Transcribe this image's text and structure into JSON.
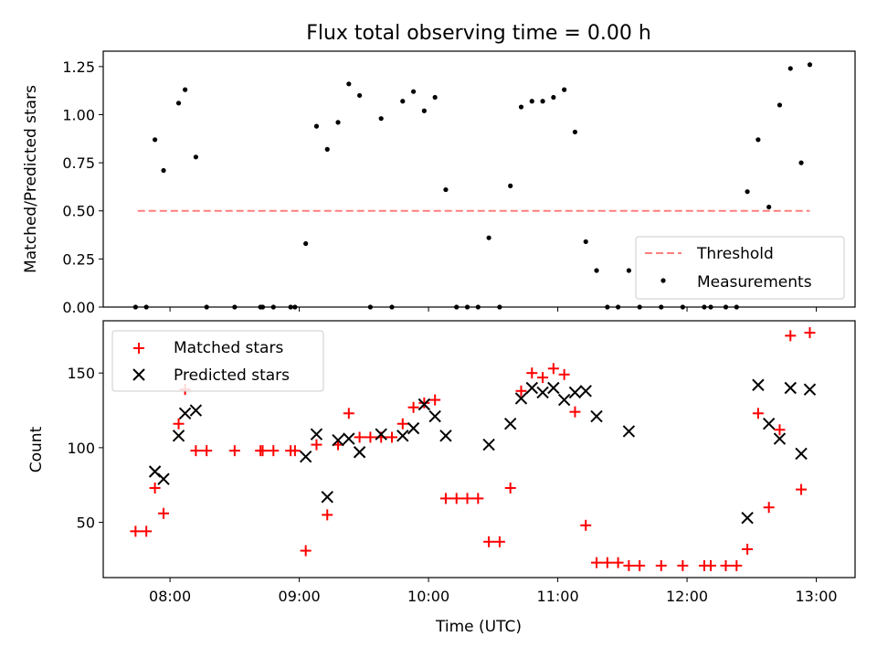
{
  "chart_data": [
    {
      "type": "scatter",
      "title": "Flux total observing time = 0.00 h",
      "xlabel": "",
      "ylabel": "Matched/Predicted stars",
      "xlim": [
        "07:29",
        "13:18"
      ],
      "ylim": [
        0,
        1.33
      ],
      "yticks": [
        0.0,
        0.25,
        0.5,
        0.75,
        1.0,
        1.25
      ],
      "ytick_labels": [
        "0.00",
        "0.25",
        "0.50",
        "0.75",
        "1.00",
        "1.25"
      ],
      "grid": false,
      "legend": {
        "location": "lower-right",
        "entries": [
          "Threshold",
          "Measurements"
        ]
      },
      "threshold": {
        "name": "Threshold",
        "y": 0.5,
        "x_start": "07:45",
        "x_end": "12:57",
        "style": "dashed",
        "color": "#ff7f7f"
      },
      "measurements": {
        "name": "Measurements",
        "color": "#000000",
        "points": [
          [
            "07:44",
            0.0
          ],
          [
            "07:49",
            0.0
          ],
          [
            "07:53",
            0.87
          ],
          [
            "07:57",
            0.71
          ],
          [
            "08:04",
            1.06
          ],
          [
            "08:07",
            1.13
          ],
          [
            "08:12",
            0.78
          ],
          [
            "08:17",
            0.0
          ],
          [
            "08:30",
            0.0
          ],
          [
            "08:42",
            0.0
          ],
          [
            "08:43",
            0.0
          ],
          [
            "08:48",
            0.0
          ],
          [
            "08:56",
            0.0
          ],
          [
            "08:58",
            0.0
          ],
          [
            "09:03",
            0.33
          ],
          [
            "09:08",
            0.94
          ],
          [
            "09:13",
            0.82
          ],
          [
            "09:18",
            0.96
          ],
          [
            "09:23",
            1.16
          ],
          [
            "09:28",
            1.1
          ],
          [
            "09:33",
            0.0
          ],
          [
            "09:38",
            0.98
          ],
          [
            "09:43",
            0.0
          ],
          [
            "09:48",
            1.07
          ],
          [
            "09:53",
            1.12
          ],
          [
            "09:58",
            1.02
          ],
          [
            "10:03",
            1.09
          ],
          [
            "10:08",
            0.61
          ],
          [
            "10:13",
            0.0
          ],
          [
            "10:18",
            0.0
          ],
          [
            "10:23",
            0.0
          ],
          [
            "10:28",
            0.36
          ],
          [
            "10:33",
            0.0
          ],
          [
            "10:38",
            0.63
          ],
          [
            "10:43",
            1.04
          ],
          [
            "10:48",
            1.07
          ],
          [
            "10:53",
            1.07
          ],
          [
            "10:58",
            1.09
          ],
          [
            "11:03",
            1.13
          ],
          [
            "11:08",
            0.91
          ],
          [
            "11:13",
            0.34
          ],
          [
            "11:18",
            0.19
          ],
          [
            "11:23",
            0.0
          ],
          [
            "11:28",
            0.0
          ],
          [
            "11:33",
            0.19
          ],
          [
            "11:38",
            0.0
          ],
          [
            "11:48",
            0.0
          ],
          [
            "11:58",
            0.0
          ],
          [
            "12:08",
            0.0
          ],
          [
            "12:11",
            0.0
          ],
          [
            "12:18",
            0.0
          ],
          [
            "12:23",
            0.0
          ],
          [
            "12:28",
            0.6
          ],
          [
            "12:33",
            0.87
          ],
          [
            "12:38",
            0.52
          ],
          [
            "12:43",
            1.05
          ],
          [
            "12:48",
            1.24
          ],
          [
            "12:53",
            0.75
          ],
          [
            "12:57",
            1.26
          ]
        ]
      }
    },
    {
      "type": "scatter",
      "title": "",
      "xlabel": "Time (UTC)",
      "ylabel": "Count",
      "xlim": [
        "07:29",
        "13:18"
      ],
      "ylim": [
        13,
        185
      ],
      "xticks": [
        "08:00",
        "09:00",
        "10:00",
        "11:00",
        "12:00",
        "13:00"
      ],
      "yticks": [
        50,
        100,
        150
      ],
      "grid": false,
      "legend": {
        "location": "top-left",
        "entries": [
          "Matched stars",
          "Predicted stars"
        ]
      },
      "series": [
        {
          "name": "Matched stars",
          "marker": "plus",
          "color": "#ff0000",
          "points": [
            [
              "07:44",
              44
            ],
            [
              "07:49",
              44
            ],
            [
              "07:53",
              73
            ],
            [
              "07:57",
              56
            ],
            [
              "08:04",
              116
            ],
            [
              "08:07",
              139
            ],
            [
              "08:12",
              98
            ],
            [
              "08:17",
              98
            ],
            [
              "08:30",
              98
            ],
            [
              "08:42",
              98
            ],
            [
              "08:43",
              98
            ],
            [
              "08:48",
              98
            ],
            [
              "08:56",
              98
            ],
            [
              "08:58",
              98
            ],
            [
              "09:03",
              31
            ],
            [
              "09:08",
              102
            ],
            [
              "09:13",
              55
            ],
            [
              "09:18",
              102
            ],
            [
              "09:23",
              123
            ],
            [
              "09:28",
              107
            ],
            [
              "09:33",
              107
            ],
            [
              "09:38",
              107
            ],
            [
              "09:43",
              107
            ],
            [
              "09:48",
              116
            ],
            [
              "09:53",
              127
            ],
            [
              "09:58",
              130
            ],
            [
              "10:03",
              132
            ],
            [
              "10:08",
              66
            ],
            [
              "10:13",
              66
            ],
            [
              "10:18",
              66
            ],
            [
              "10:23",
              66
            ],
            [
              "10:28",
              37
            ],
            [
              "10:33",
              37
            ],
            [
              "10:38",
              73
            ],
            [
              "10:43",
              138
            ],
            [
              "10:48",
              150
            ],
            [
              "10:53",
              147
            ],
            [
              "10:58",
              153
            ],
            [
              "11:03",
              149
            ],
            [
              "11:08",
              124
            ],
            [
              "11:13",
              48
            ],
            [
              "11:18",
              23
            ],
            [
              "11:23",
              23
            ],
            [
              "11:28",
              23
            ],
            [
              "11:33",
              21
            ],
            [
              "11:38",
              21
            ],
            [
              "11:48",
              21
            ],
            [
              "11:58",
              21
            ],
            [
              "12:08",
              21
            ],
            [
              "12:11",
              21
            ],
            [
              "12:18",
              21
            ],
            [
              "12:23",
              21
            ],
            [
              "12:28",
              32
            ],
            [
              "12:33",
              123
            ],
            [
              "12:38",
              60
            ],
            [
              "12:43",
              112
            ],
            [
              "12:48",
              175
            ],
            [
              "12:53",
              72
            ],
            [
              "12:57",
              177
            ]
          ]
        },
        {
          "name": "Predicted stars",
          "marker": "x",
          "color": "#000000",
          "points": [
            [
              "07:53",
              84
            ],
            [
              "07:57",
              79
            ],
            [
              "08:04",
              108
            ],
            [
              "08:07",
              123
            ],
            [
              "08:12",
              125
            ],
            [
              "09:03",
              94
            ],
            [
              "09:08",
              109
            ],
            [
              "09:13",
              67
            ],
            [
              "09:18",
              105
            ],
            [
              "09:23",
              106
            ],
            [
              "09:28",
              97
            ],
            [
              "09:38",
              109
            ],
            [
              "09:48",
              108
            ],
            [
              "09:53",
              113
            ],
            [
              "09:58",
              129
            ],
            [
              "10:03",
              121
            ],
            [
              "10:08",
              108
            ],
            [
              "10:28",
              102
            ],
            [
              "10:38",
              116
            ],
            [
              "10:43",
              133
            ],
            [
              "10:48",
              140
            ],
            [
              "10:53",
              137
            ],
            [
              "10:58",
              140
            ],
            [
              "11:03",
              132
            ],
            [
              "11:08",
              137
            ],
            [
              "11:13",
              138
            ],
            [
              "11:18",
              121
            ],
            [
              "11:33",
              111
            ],
            [
              "12:28",
              53
            ],
            [
              "12:33",
              142
            ],
            [
              "12:38",
              116
            ],
            [
              "12:43",
              106
            ],
            [
              "12:48",
              140
            ],
            [
              "12:53",
              96
            ],
            [
              "12:57",
              139
            ]
          ]
        }
      ]
    }
  ]
}
